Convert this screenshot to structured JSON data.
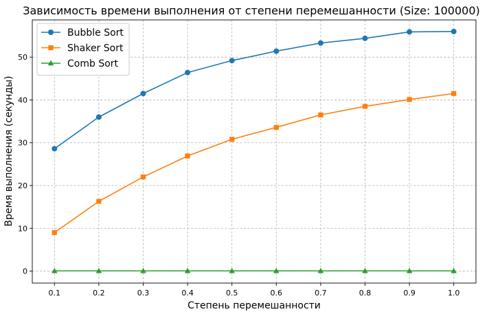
{
  "chart_data": {
    "type": "line",
    "title": "Зависимость времени выполнения от степени перемешанности (Size: 100000)",
    "xlabel": "Степень перемешанности",
    "ylabel": "Время выполнения (секунды)",
    "x": [
      0.1,
      0.2,
      0.3,
      0.4,
      0.5,
      0.6,
      0.7,
      0.8,
      0.9,
      1.0
    ],
    "x_tick_labels": [
      "0.1",
      "0.2",
      "0.3",
      "0.4",
      "0.5",
      "0.6",
      "0.7",
      "0.8",
      "0.9",
      "1.0"
    ],
    "y_ticks": [
      0,
      10,
      20,
      30,
      40,
      50
    ],
    "y_tick_labels": [
      "0",
      "10",
      "20",
      "30",
      "40",
      "50"
    ],
    "xlim": [
      0.05,
      1.05
    ],
    "ylim": [
      -2.8,
      58.7
    ],
    "grid": true,
    "legend_position": "top-left",
    "series": [
      {
        "name": "Bubble Sort",
        "color": "#1f77b4",
        "marker": "circle",
        "values": [
          28.6,
          36.0,
          41.5,
          46.4,
          49.2,
          51.4,
          53.3,
          54.4,
          55.9,
          56.0
        ]
      },
      {
        "name": "Shaker Sort",
        "color": "#ff7f0e",
        "marker": "square",
        "values": [
          9.0,
          16.3,
          22.0,
          26.9,
          30.8,
          33.6,
          36.5,
          38.5,
          40.1,
          41.5
        ]
      },
      {
        "name": "Comb Sort",
        "color": "#2ca02c",
        "marker": "triangle",
        "values": [
          0.05,
          0.05,
          0.05,
          0.05,
          0.05,
          0.05,
          0.05,
          0.05,
          0.05,
          0.05
        ]
      }
    ]
  }
}
